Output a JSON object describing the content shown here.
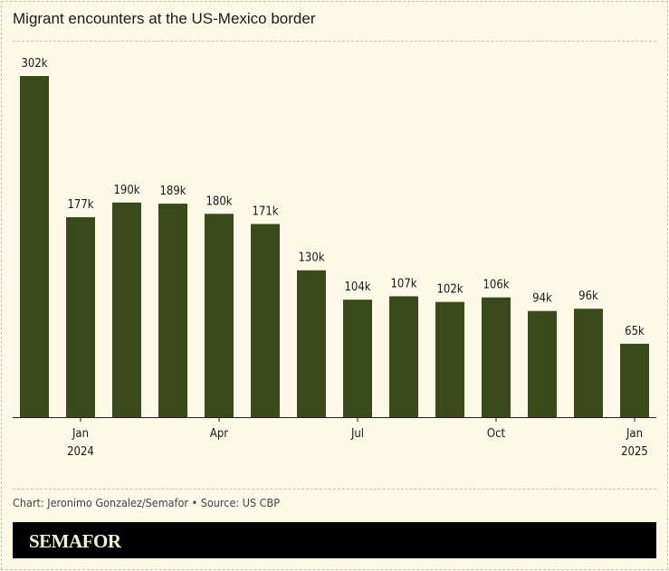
{
  "title": "Migrant encounters at the US-Mexico border",
  "credit": "Chart: Jeronimo Gonzalez/Semafor • Source: US CBP",
  "logo": "SEMAFOR",
  "colors": {
    "bar": "#3b4a1b",
    "background": "#fcf9e9"
  },
  "chart_data": {
    "type": "bar",
    "title": "Migrant encounters at the US-Mexico border",
    "categories": [
      "Dec 2023",
      "Jan 2024",
      "Feb 2024",
      "Mar 2024",
      "Apr 2024",
      "May 2024",
      "Jun 2024",
      "Jul 2024",
      "Aug 2024",
      "Sep 2024",
      "Oct 2024",
      "Nov 2024",
      "Dec 2024",
      "Jan 2025"
    ],
    "values": [
      302,
      177,
      190,
      189,
      180,
      171,
      130,
      104,
      107,
      102,
      106,
      94,
      96,
      65
    ],
    "data_labels": [
      "302k",
      "177k",
      "190k",
      "189k",
      "180k",
      "171k",
      "130k",
      "104k",
      "107k",
      "102k",
      "106k",
      "94k",
      "96k",
      "65k"
    ],
    "x_ticks": [
      {
        "index": 1,
        "line1": "Jan",
        "line2": "2024"
      },
      {
        "index": 4,
        "line1": "Apr",
        "line2": ""
      },
      {
        "index": 7,
        "line1": "Jul",
        "line2": ""
      },
      {
        "index": 10,
        "line1": "Oct",
        "line2": ""
      },
      {
        "index": 13,
        "line1": "Jan",
        "line2": "2025"
      }
    ],
    "unit": "thousands",
    "ylim": [
      0,
      302
    ],
    "grid": false
  }
}
